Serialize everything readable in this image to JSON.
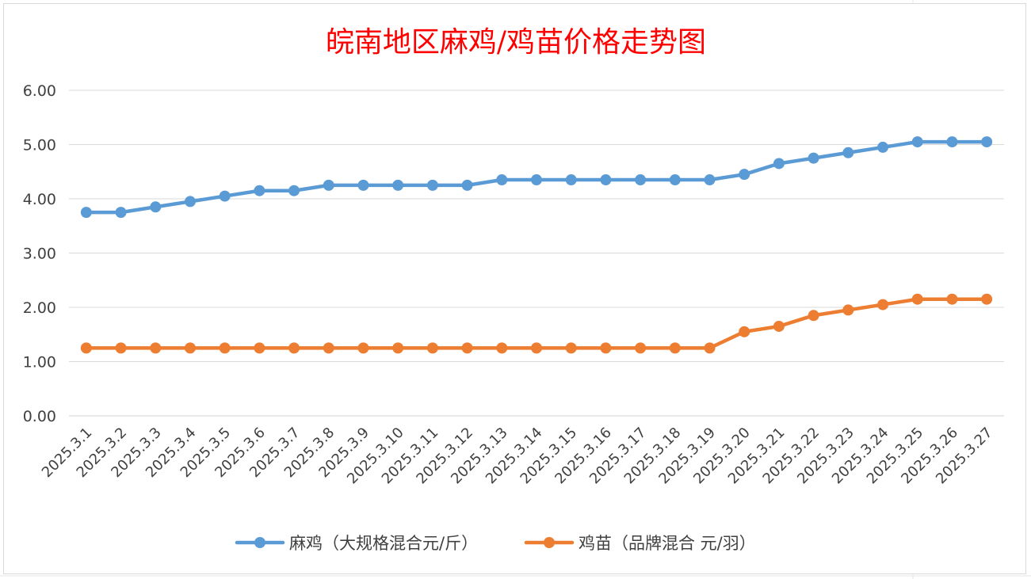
{
  "chart_data": {
    "type": "line",
    "title": "皖南地区麻鸡/鸡苗价格走势图",
    "xlabel": "",
    "ylabel": "",
    "categories": [
      "2025.3.1",
      "2025.3.2",
      "2025.3.3",
      "2025.3.4",
      "2025.3.5",
      "2025.3.6",
      "2025.3.7",
      "2025.3.8",
      "2025.3.9",
      "2025.3.10",
      "2025.3.11",
      "2025.3.12",
      "2025.3.13",
      "2025.3.14",
      "2025.3.15",
      "2025.3.16",
      "2025.3.17",
      "2025.3.18",
      "2025.3.19",
      "2025.3.20",
      "2025.3.21",
      "2025.3.22",
      "2025.3.23",
      "2025.3.24",
      "2025.3.25",
      "2025.3.26",
      "2025.3.27"
    ],
    "yticks": [
      "0.00",
      "1.00",
      "2.00",
      "3.00",
      "4.00",
      "5.00",
      "6.00"
    ],
    "ylim": [
      0,
      6
    ],
    "grid": true,
    "legend_position": "bottom",
    "series": [
      {
        "name": "麻鸡（大规格混合元/斤）",
        "color": "#5b9bd5",
        "values": [
          3.75,
          3.75,
          3.85,
          3.95,
          4.05,
          4.15,
          4.15,
          4.25,
          4.25,
          4.25,
          4.25,
          4.25,
          4.35,
          4.35,
          4.35,
          4.35,
          4.35,
          4.35,
          4.35,
          4.45,
          4.65,
          4.75,
          4.85,
          4.95,
          5.05,
          5.05,
          5.05
        ]
      },
      {
        "name": "鸡苗（品牌混合 元/羽）",
        "color": "#ed7d31",
        "values": [
          1.25,
          1.25,
          1.25,
          1.25,
          1.25,
          1.25,
          1.25,
          1.25,
          1.25,
          1.25,
          1.25,
          1.25,
          1.25,
          1.25,
          1.25,
          1.25,
          1.25,
          1.25,
          1.25,
          1.55,
          1.65,
          1.85,
          1.95,
          2.05,
          2.15,
          2.15,
          2.15
        ]
      }
    ]
  }
}
